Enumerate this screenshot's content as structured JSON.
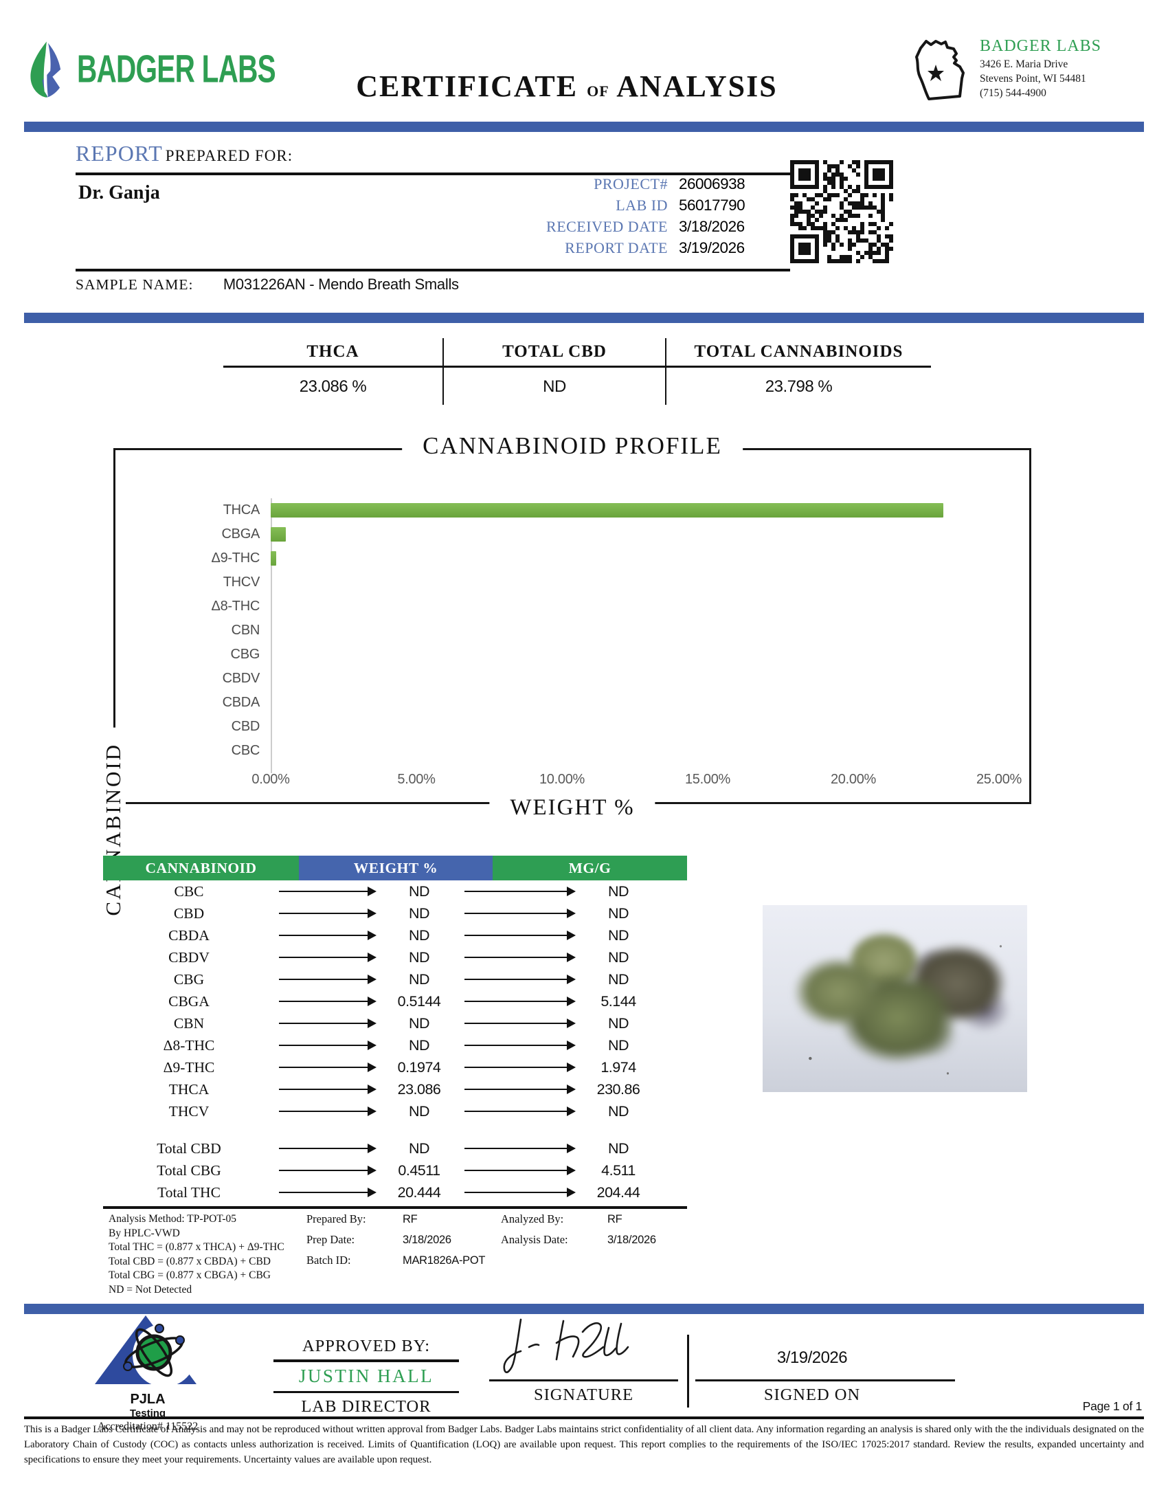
{
  "header": {
    "logo_text": "BADGER LABS",
    "title_1": "CERTIFICATE",
    "title_of": "of",
    "title_2": "ANALYSIS",
    "lab_name": "BADGER LABS",
    "address_line1": "3426 E. Maria Drive",
    "address_line2": "Stevens Point, WI 54481",
    "phone": "(715) 544-4900"
  },
  "report": {
    "section_label": "REPORT",
    "section_sublabel": "PREPARED FOR:",
    "client": "Dr. Ganja",
    "fields": [
      {
        "label": "PROJECT#",
        "value": "26006938"
      },
      {
        "label": "LAB ID",
        "value": "56017790"
      },
      {
        "label": "RECEIVED DATE",
        "value": "3/18/2026"
      },
      {
        "label": "REPORT DATE",
        "value": "3/19/2026"
      }
    ],
    "sample_name_label": "SAMPLE NAME:",
    "sample_name": "M031226AN - Mendo Breath Smalls"
  },
  "summary": {
    "items": [
      {
        "label": "THCA",
        "value": "23.086 %"
      },
      {
        "label": "TOTAL CBD",
        "value": "ND"
      },
      {
        "label": "TOTAL CANNABINOIDS",
        "value": "23.798 %"
      }
    ]
  },
  "chart_data": {
    "type": "bar",
    "orientation": "horizontal",
    "title": "CANNABINOID PROFILE",
    "xlabel": "WEIGHT %",
    "ylabel": "CANNABINOID",
    "categories": [
      "THCA",
      "CBGA",
      "Δ9-THC",
      "THCV",
      "Δ8-THC",
      "CBN",
      "CBG",
      "CBDV",
      "CBDA",
      "CBD",
      "CBC"
    ],
    "values": [
      23.086,
      0.5144,
      0.1974,
      0,
      0,
      0,
      0,
      0,
      0,
      0,
      0
    ],
    "xlim": [
      0,
      25
    ],
    "x_ticks": [
      "0.00%",
      "5.00%",
      "10.00%",
      "15.00%",
      "20.00%",
      "25.00%"
    ],
    "grid": false,
    "legend": false,
    "bar_color": "#76b043"
  },
  "table": {
    "headers": [
      "CANNABINOID",
      "WEIGHT %",
      "MG/G"
    ],
    "rows": [
      {
        "name": "CBC",
        "weight": "ND",
        "mgg": "ND"
      },
      {
        "name": "CBD",
        "weight": "ND",
        "mgg": "ND"
      },
      {
        "name": "CBDA",
        "weight": "ND",
        "mgg": "ND"
      },
      {
        "name": "CBDV",
        "weight": "ND",
        "mgg": "ND"
      },
      {
        "name": "CBG",
        "weight": "ND",
        "mgg": "ND"
      },
      {
        "name": "CBGA",
        "weight": "0.5144",
        "mgg": "5.144"
      },
      {
        "name": "CBN",
        "weight": "ND",
        "mgg": "ND"
      },
      {
        "name": "Δ8-THC",
        "weight": "ND",
        "mgg": "ND"
      },
      {
        "name": "Δ9-THC",
        "weight": "0.1974",
        "mgg": "1.974"
      },
      {
        "name": "THCA",
        "weight": "23.086",
        "mgg": "230.86"
      },
      {
        "name": "THCV",
        "weight": "ND",
        "mgg": "ND"
      }
    ],
    "totals": [
      {
        "name": "Total CBD",
        "weight": "ND",
        "mgg": "ND"
      },
      {
        "name": "Total CBG",
        "weight": "0.4511",
        "mgg": "4.511"
      },
      {
        "name": "Total THC",
        "weight": "20.444",
        "mgg": "204.44"
      }
    ]
  },
  "methods": {
    "left_lines": [
      "Analysis Method: TP-POT-05",
      "By HPLC-VWD",
      "Total THC = (0.877 x  THCA) + Δ9-THC",
      "Total CBD = (0.877 x  CBDA) + CBD",
      "Total CBG = (0.877 x  CBGA) + CBG",
      "ND = Not Detected"
    ],
    "mid": [
      {
        "label": "Prepared By:",
        "value": "RF"
      },
      {
        "label": "Prep Date:",
        "value": "3/18/2026"
      },
      {
        "label": "Batch ID:",
        "value": "MAR1826A-POT"
      }
    ],
    "right": [
      {
        "label": "Analyzed By:",
        "value": "RF"
      },
      {
        "label": "Analysis Date:",
        "value": "3/18/2026"
      }
    ]
  },
  "footer": {
    "pjla_name": "PJLA",
    "pjla_sub": "Testing",
    "pjla_accreditation": "Accreditation# 115522",
    "approved_by_label": "APPROVED BY:",
    "approver_name": "JUSTIN HALL",
    "approver_title": "LAB DIRECTOR",
    "signature_label": "SIGNATURE",
    "signed_on_date": "3/19/2026",
    "signed_on_label": "SIGNED ON",
    "page_label": "Page 1 of 1",
    "fine_print": "This is a Badger Labs Certificate of Analysis and may not be reproduced without written approval from Badger Labs. Badger Labs maintains strict confidentiality of all client data. Any information regarding an analysis is shared only with the the individuals designated on the Laboratory Chain of Custody (COC) as contacts unless authorization is received. Limits of Quantification (LOQ) are available upon request. This report complies to the requirements of the ISO/IEC 17025:2017 standard. Review the results, expanded uncertainty and specifications to ensure they meet your requirements. Uncertainty values are available upon request."
  }
}
